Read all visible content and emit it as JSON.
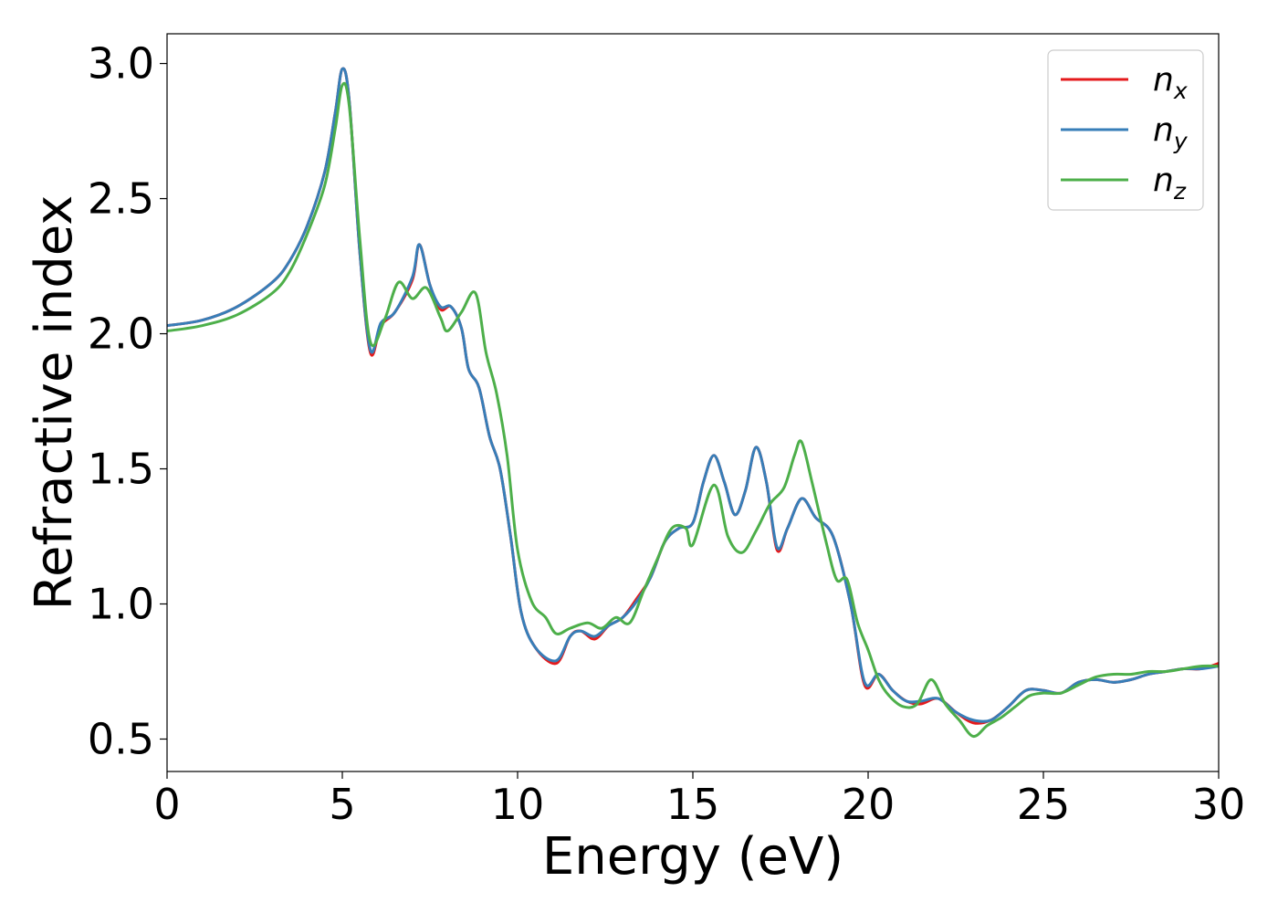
{
  "chart_data": {
    "type": "line",
    "title": "",
    "xlabel": "Energy (eV)",
    "ylabel": "Refractive index",
    "xlim": [
      0,
      30
    ],
    "ylim": [
      0.38,
      3.11
    ],
    "xticks": [
      "0",
      "5",
      "10",
      "15",
      "20",
      "25",
      "30"
    ],
    "yticks": [
      "0.5",
      "1.0",
      "1.5",
      "2.0",
      "2.5",
      "3.0"
    ],
    "grid": false,
    "legend_position": "top-right",
    "series": [
      {
        "name": "n_x",
        "label_base": "n",
        "label_sub": "x",
        "color": "#e41a1c",
        "x": [
          0,
          1,
          2,
          3,
          3.5,
          4,
          4.5,
          4.8,
          5.0,
          5.2,
          5.5,
          5.8,
          6.1,
          6.5,
          7.0,
          7.2,
          7.5,
          7.8,
          8.1,
          8.4,
          8.6,
          8.9,
          9.2,
          9.5,
          9.8,
          10.1,
          10.5,
          11.1,
          11.5,
          11.8,
          12.2,
          12.6,
          13.0,
          13.4,
          13.8,
          14.2,
          14.6,
          15.0,
          15.3,
          15.6,
          15.9,
          16.2,
          16.5,
          16.8,
          17.1,
          17.4,
          17.7,
          18.1,
          18.5,
          19.0,
          19.5,
          19.9,
          20.3,
          20.7,
          21.1,
          21.5,
          22.0,
          22.5,
          23.0,
          23.5,
          24.0,
          24.5,
          25.0,
          25.5,
          26.0,
          26.5,
          27.0,
          27.5,
          28.0,
          28.5,
          29.0,
          29.5,
          30.0
        ],
        "y": [
          2.03,
          2.05,
          2.1,
          2.19,
          2.27,
          2.4,
          2.6,
          2.82,
          2.98,
          2.86,
          2.3,
          1.93,
          2.03,
          2.08,
          2.2,
          2.33,
          2.18,
          2.09,
          2.1,
          2.02,
          1.87,
          1.8,
          1.62,
          1.5,
          1.25,
          0.97,
          0.84,
          0.78,
          0.88,
          0.9,
          0.87,
          0.92,
          0.95,
          1.02,
          1.1,
          1.23,
          1.28,
          1.3,
          1.45,
          1.55,
          1.45,
          1.33,
          1.42,
          1.58,
          1.45,
          1.2,
          1.28,
          1.39,
          1.32,
          1.25,
          1.0,
          0.7,
          0.74,
          0.68,
          0.64,
          0.63,
          0.65,
          0.6,
          0.56,
          0.57,
          0.62,
          0.68,
          0.68,
          0.67,
          0.71,
          0.72,
          0.71,
          0.72,
          0.74,
          0.75,
          0.76,
          0.76,
          0.78
        ]
      },
      {
        "name": "n_y",
        "label_base": "n",
        "label_sub": "y",
        "color": "#377eb8",
        "x": [
          0,
          1,
          2,
          3,
          3.5,
          4,
          4.5,
          4.8,
          5.0,
          5.2,
          5.5,
          5.8,
          6.1,
          6.5,
          7.0,
          7.2,
          7.5,
          7.8,
          8.1,
          8.4,
          8.6,
          8.9,
          9.2,
          9.5,
          9.8,
          10.1,
          10.5,
          11.1,
          11.5,
          11.8,
          12.2,
          12.6,
          13.0,
          13.4,
          13.8,
          14.2,
          14.6,
          15.0,
          15.3,
          15.6,
          15.9,
          16.2,
          16.5,
          16.8,
          17.1,
          17.4,
          17.7,
          18.1,
          18.5,
          19.0,
          19.5,
          19.9,
          20.3,
          20.7,
          21.1,
          21.5,
          22.0,
          22.5,
          23.0,
          23.5,
          24.0,
          24.5,
          25.0,
          25.5,
          26.0,
          26.5,
          27.0,
          27.5,
          28.0,
          28.5,
          29.0,
          29.5,
          30.0
        ],
        "y": [
          2.03,
          2.05,
          2.1,
          2.19,
          2.27,
          2.4,
          2.6,
          2.82,
          2.98,
          2.86,
          2.3,
          1.94,
          2.04,
          2.08,
          2.21,
          2.33,
          2.18,
          2.1,
          2.1,
          2.02,
          1.87,
          1.8,
          1.62,
          1.5,
          1.25,
          0.97,
          0.84,
          0.79,
          0.88,
          0.9,
          0.88,
          0.92,
          0.95,
          1.01,
          1.1,
          1.23,
          1.28,
          1.3,
          1.45,
          1.55,
          1.45,
          1.33,
          1.42,
          1.58,
          1.45,
          1.21,
          1.28,
          1.39,
          1.32,
          1.25,
          1.0,
          0.71,
          0.74,
          0.68,
          0.64,
          0.64,
          0.65,
          0.6,
          0.57,
          0.57,
          0.62,
          0.68,
          0.68,
          0.67,
          0.71,
          0.72,
          0.71,
          0.72,
          0.74,
          0.75,
          0.76,
          0.76,
          0.77
        ]
      },
      {
        "name": "n_z",
        "label_base": "n",
        "label_sub": "z",
        "color": "#4daf4a",
        "x": [
          0,
          1,
          2,
          3,
          3.5,
          4,
          4.5,
          4.8,
          5.0,
          5.2,
          5.5,
          5.8,
          6.2,
          6.6,
          7.0,
          7.4,
          7.8,
          8.0,
          8.4,
          8.8,
          9.1,
          9.4,
          9.7,
          10.0,
          10.4,
          10.8,
          11.1,
          11.5,
          12.0,
          12.4,
          12.8,
          13.2,
          13.6,
          14.0,
          14.4,
          14.8,
          15.0,
          15.6,
          16.0,
          16.4,
          16.8,
          17.2,
          17.6,
          17.9,
          18.1,
          18.4,
          18.8,
          19.1,
          19.4,
          19.7,
          20.0,
          20.3,
          20.6,
          21.0,
          21.4,
          21.8,
          22.2,
          22.6,
          23.0,
          23.4,
          23.8,
          24.2,
          24.6,
          25.0,
          25.5,
          26.0,
          26.5,
          27.0,
          27.5,
          28.0,
          28.5,
          29.0,
          29.5,
          30.0
        ],
        "y": [
          2.01,
          2.03,
          2.07,
          2.15,
          2.23,
          2.37,
          2.55,
          2.76,
          2.92,
          2.84,
          2.35,
          1.97,
          2.05,
          2.19,
          2.13,
          2.17,
          2.06,
          2.01,
          2.08,
          2.15,
          1.93,
          1.78,
          1.55,
          1.2,
          1.01,
          0.95,
          0.89,
          0.91,
          0.93,
          0.91,
          0.95,
          0.93,
          1.05,
          1.17,
          1.28,
          1.28,
          1.22,
          1.44,
          1.25,
          1.19,
          1.27,
          1.37,
          1.43,
          1.55,
          1.6,
          1.45,
          1.23,
          1.09,
          1.09,
          0.93,
          0.83,
          0.72,
          0.66,
          0.62,
          0.63,
          0.72,
          0.63,
          0.57,
          0.51,
          0.55,
          0.58,
          0.62,
          0.66,
          0.67,
          0.67,
          0.7,
          0.73,
          0.74,
          0.74,
          0.75,
          0.75,
          0.76,
          0.77,
          0.77
        ]
      }
    ]
  }
}
